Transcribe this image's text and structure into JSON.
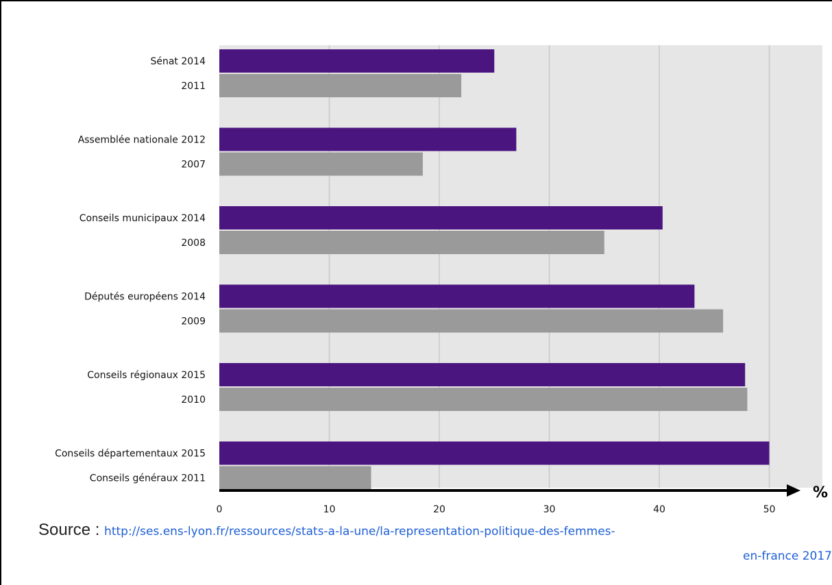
{
  "chart_data": {
    "type": "bar",
    "orientation": "horizontal",
    "categories": [
      "Sénat 2014",
      "2011",
      "Assemblée nationale 2012",
      "2007",
      "Conseils municipaux 2014",
      "2008",
      "Députés européens 2014",
      "2009",
      "Conseils régionaux 2015",
      "2010",
      "Conseils départementaux 2015",
      "Conseils généraux 2011"
    ],
    "values": [
      25,
      22,
      27,
      18.5,
      40.3,
      35,
      43.2,
      45.8,
      47.8,
      48,
      50,
      13.8
    ],
    "colors": [
      "#4b1580",
      "#9a9a9a",
      "#4b1580",
      "#9a9a9a",
      "#4b1580",
      "#9a9a9a",
      "#4b1580",
      "#9a9a9a",
      "#4b1580",
      "#9a9a9a",
      "#4b1580",
      "#9a9a9a"
    ],
    "x_ticks": [
      "0",
      "10",
      "20",
      "30",
      "40",
      "50"
    ],
    "xlim": [
      0,
      55
    ],
    "x_unit": "%",
    "grid": true,
    "plot_background": "#e6e6e6",
    "grid_color": "#c8c8c8"
  },
  "source": {
    "prefix": "Source : ",
    "url_line1": "http://ses.ens-lyon.fr/ressources/stats-a-la-une/la-representation-politique-des-femmes-",
    "url_line2": "en-france 2017"
  }
}
